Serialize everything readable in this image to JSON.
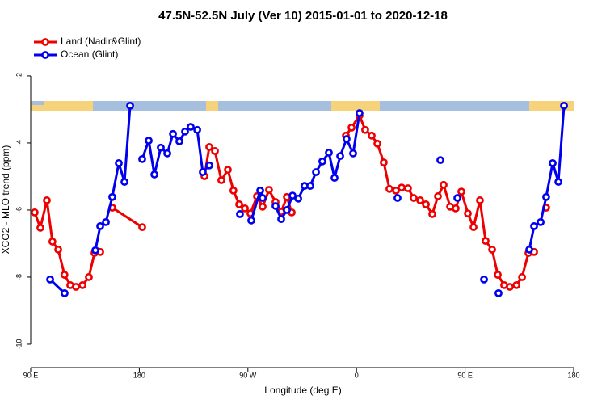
{
  "chart_data": {
    "type": "line",
    "title": "47.5N-52.5N July (Ver 10)   2015-01-01 to 2020-12-18",
    "x_label": "Longitude (deg E)",
    "y_label": "XCO2 - MLO trend (ppm)",
    "xlim": [
      90,
      540
    ],
    "ylim": [
      -10.7,
      -0.7
    ],
    "xticks": [
      {
        "value": 90,
        "label": "90 E"
      },
      180,
      {
        "value": 270,
        "label": "90 W"
      },
      {
        "value": 360,
        "label": "0"
      },
      {
        "value": 450,
        "label": "90 E"
      },
      {
        "value": 540,
        "label": "180"
      }
    ],
    "yticks": [
      -2,
      -4,
      -6,
      -8,
      -10
    ],
    "grid": false,
    "legend": "topleft",
    "series": [
      {
        "name": "Land (Nadir&Glint)",
        "color": "#ee0000",
        "x": [
          93.3,
          98,
          103.4,
          108,
          112.8,
          118,
          122.8,
          127.5,
          132.9,
          138.2,
          142.9,
          147.6,
          null,
          157.6,
          182.4,
          null,
          234,
          238,
          242.7,
          248,
          253.4,
          258,
          262.8,
          267.5,
          272.1,
          277.5,
          282.2,
          287.5,
          292.9,
          297.6,
          302.3,
          306.3,
          null,
          351.2,
          355.9,
          362.5,
          367.2,
          372.6,
          377.3,
          382.6,
          387.3,
          392.7,
          397.4,
          402.7,
          407.4,
          412.8,
          417.5,
          422.8,
          427.5,
          432.2,
          437.6,
          442.2,
          446.9,
          452.3,
          457,
          462.3,
          467,
          472.4,
          477.1,
          482.4,
          487.1,
          492.5,
          497.2,
          502.5,
          507.2,
          null,
          517.2
        ],
        "values": [
          -6.07,
          -6.53,
          -5.71,
          -6.94,
          -7.18,
          -7.93,
          -8.24,
          -8.29,
          -8.24,
          -8.0,
          -7.28,
          -7.25,
          null,
          -5.93,
          -6.51,
          null,
          -4.99,
          -4.12,
          -4.24,
          -5.11,
          -4.8,
          -5.42,
          -5.83,
          -5.95,
          -6.1,
          -5.59,
          -5.9,
          -5.4,
          -5.76,
          -6.05,
          -5.61,
          -6.07,
          null,
          -3.78,
          -3.54,
          -3.18,
          -3.61,
          -3.78,
          -4.02,
          -4.58,
          -5.37,
          -5.42,
          -5.33,
          -5.35,
          -5.64,
          -5.71,
          -5.83,
          -6.12,
          -5.59,
          -5.25,
          -5.9,
          -5.95,
          -5.45,
          -6.1,
          -6.51,
          -5.71,
          -6.92,
          -7.18,
          -7.93,
          -8.24,
          -8.29,
          -8.24,
          -8.0,
          -7.28,
          -7.25,
          null,
          -5.93
        ]
      },
      {
        "name": "Ocean (Glint)",
        "color": "#0000ee",
        "x": [
          106.1,
          118.1,
          null,
          143.6,
          147.6,
          152.3,
          157.6,
          163,
          167.7,
          172.4,
          null,
          182.4,
          187.8,
          192.5,
          197.8,
          203.2,
          207.9,
          213.2,
          217.9,
          222.6,
          228,
          232.6,
          238,
          null,
          263.4,
          null,
          272.8,
          280.2,
          282.2,
          null,
          292.9,
          297.6,
          302.3,
          307,
          311.7,
          317,
          321.7,
          326.4,
          331.7,
          337.1,
          341.8,
          346.5,
          351.8,
          357.2,
          362.5,
          null,
          394,
          null,
          429.5,
          null,
          443.6,
          null,
          465.7,
          null,
          477.7,
          null,
          503.2,
          507.2,
          512.6,
          517.2,
          522.6,
          527.3,
          532
        ],
        "values": [
          -8.07,
          -8.48,
          null,
          -7.2,
          -6.48,
          -6.36,
          -5.61,
          -4.6,
          -5.16,
          -2.89,
          null,
          -4.48,
          -3.93,
          -4.94,
          -4.14,
          -4.31,
          -3.73,
          -3.95,
          -3.66,
          -3.52,
          -3.61,
          -4.87,
          -4.67,
          null,
          -6.12,
          null,
          -6.31,
          -5.42,
          -5.64,
          null,
          -5.88,
          -6.27,
          -6.0,
          -5.57,
          -5.66,
          -5.28,
          -5.28,
          -4.87,
          -4.55,
          -4.29,
          -5.04,
          -4.39,
          -3.88,
          -4.31,
          -3.11,
          null,
          -5.64,
          null,
          -4.51,
          null,
          -5.64,
          null,
          -8.07,
          null,
          -8.48,
          null,
          -7.18,
          -6.48,
          -6.36,
          -5.61,
          -4.6,
          -5.16,
          -2.89
        ]
      }
    ]
  }
}
